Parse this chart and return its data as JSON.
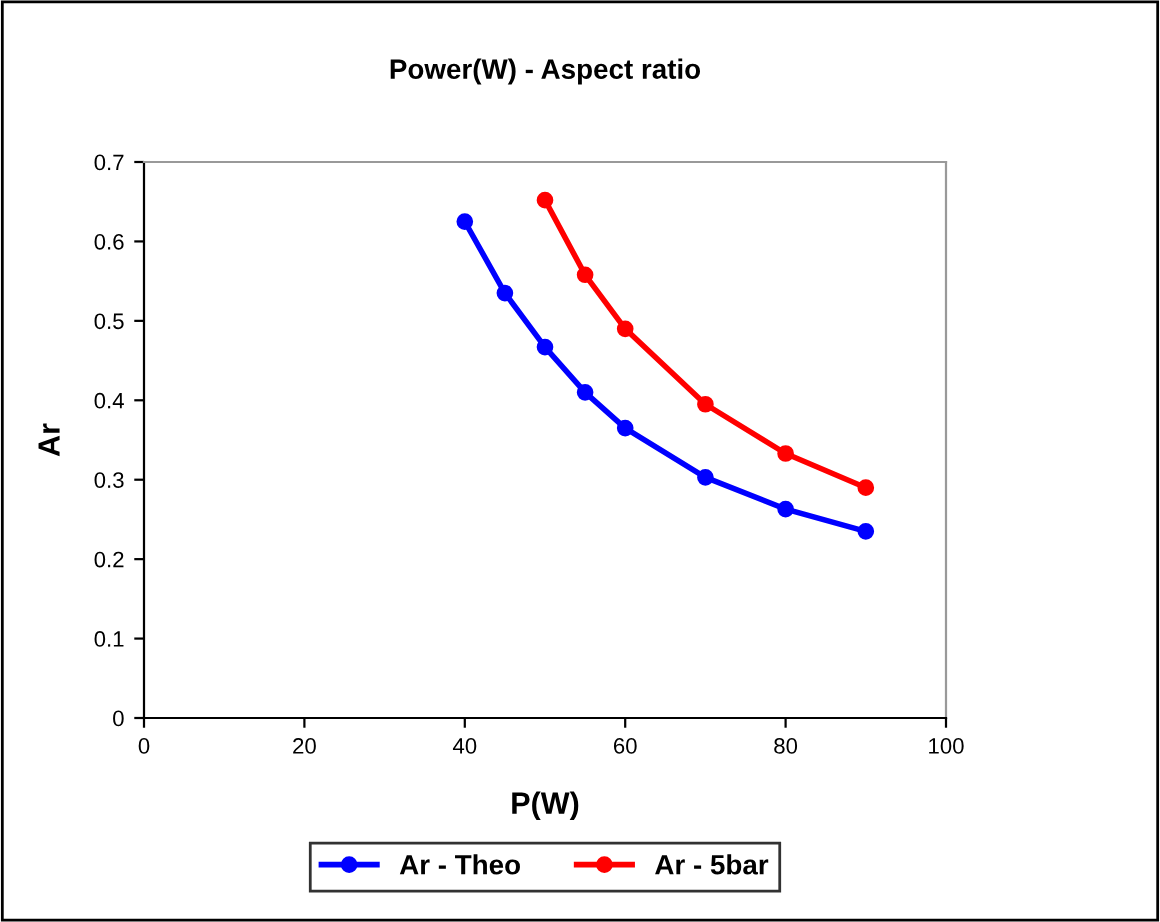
{
  "chart_data": {
    "type": "line",
    "title": "Power(W) - Aspect ratio",
    "xlabel": "P(W)",
    "ylabel": "Ar",
    "xlim": [
      0,
      100
    ],
    "xticks": [
      0,
      20,
      40,
      60,
      80,
      100
    ],
    "ylim": [
      0,
      0.7
    ],
    "yticks": [
      0,
      0.1,
      0.2,
      0.3,
      0.4,
      0.5,
      0.6,
      0.7
    ],
    "series": [
      {
        "name": "Ar - Theo",
        "color": "#0000ff",
        "x": [
          40,
          45,
          50,
          55,
          60,
          70,
          80,
          90
        ],
        "values": [
          0.625,
          0.535,
          0.467,
          0.41,
          0.365,
          0.303,
          0.263,
          0.235
        ]
      },
      {
        "name": "Ar - 5bar",
        "color": "#ff0000",
        "x": [
          50,
          55,
          60,
          70,
          80,
          90
        ],
        "values": [
          0.652,
          0.558,
          0.49,
          0.395,
          0.333,
          0.29
        ]
      }
    ],
    "marker": "circle",
    "line_style": "solid",
    "grid": false,
    "legend": "bottom"
  }
}
